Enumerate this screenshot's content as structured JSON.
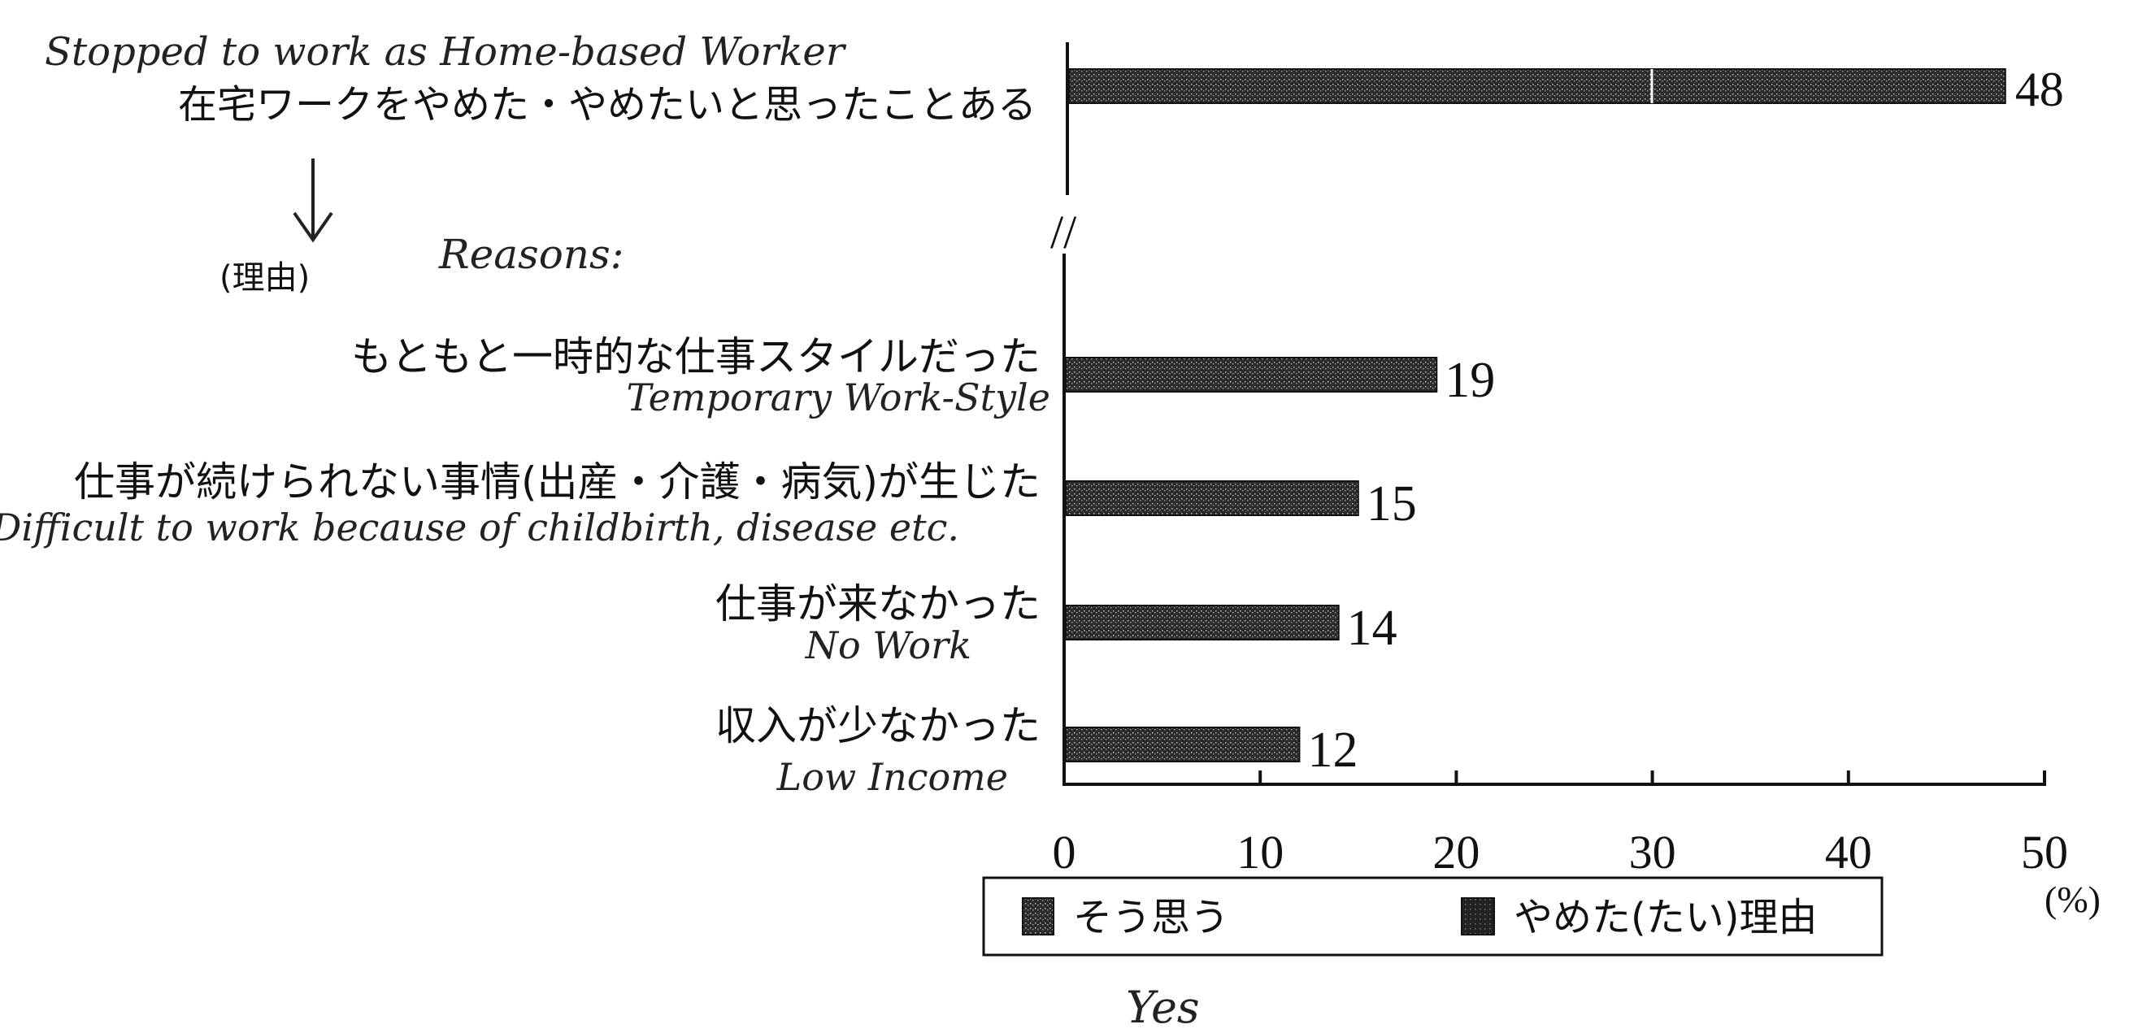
{
  "chart_data": {
    "type": "bar",
    "orientation": "horizontal",
    "title": "",
    "xlabel": "",
    "ylabel": "",
    "unit": "(%)",
    "xlim": [
      0,
      50
    ],
    "ticks": [
      "0",
      "10",
      "20",
      "30",
      "40",
      "50"
    ],
    "grid": false,
    "axis_break": "//",
    "top_bar": {
      "label": "在宅ワークをやめた・やめたいと思ったことある",
      "annotation": "Stopped to work as Home-based Worker",
      "value": 48,
      "series": "そう思う"
    },
    "reasons_heading": "(理由)",
    "reasons_annotation": "Reasons:",
    "categories": [
      "もともと一時的な仕事スタイルだった",
      "仕事が続けられない事情(出産・介護・病気)が生じた",
      "仕事が来なかった",
      "収入が少なかった"
    ],
    "category_annotations": [
      "Temporary Work-Style",
      "Difficult to work because of childbirth, disease etc.",
      "No Work",
      "Low Income"
    ],
    "values": [
      19,
      15,
      14,
      12
    ],
    "series_name": "やめた(たい)理由",
    "legend": {
      "position": "bottom",
      "items": [
        {
          "name": "そう思う",
          "color": "#777777"
        },
        {
          "name": "やめた(たい)理由",
          "color": "#555555"
        }
      ],
      "annotation": "Yes"
    }
  }
}
